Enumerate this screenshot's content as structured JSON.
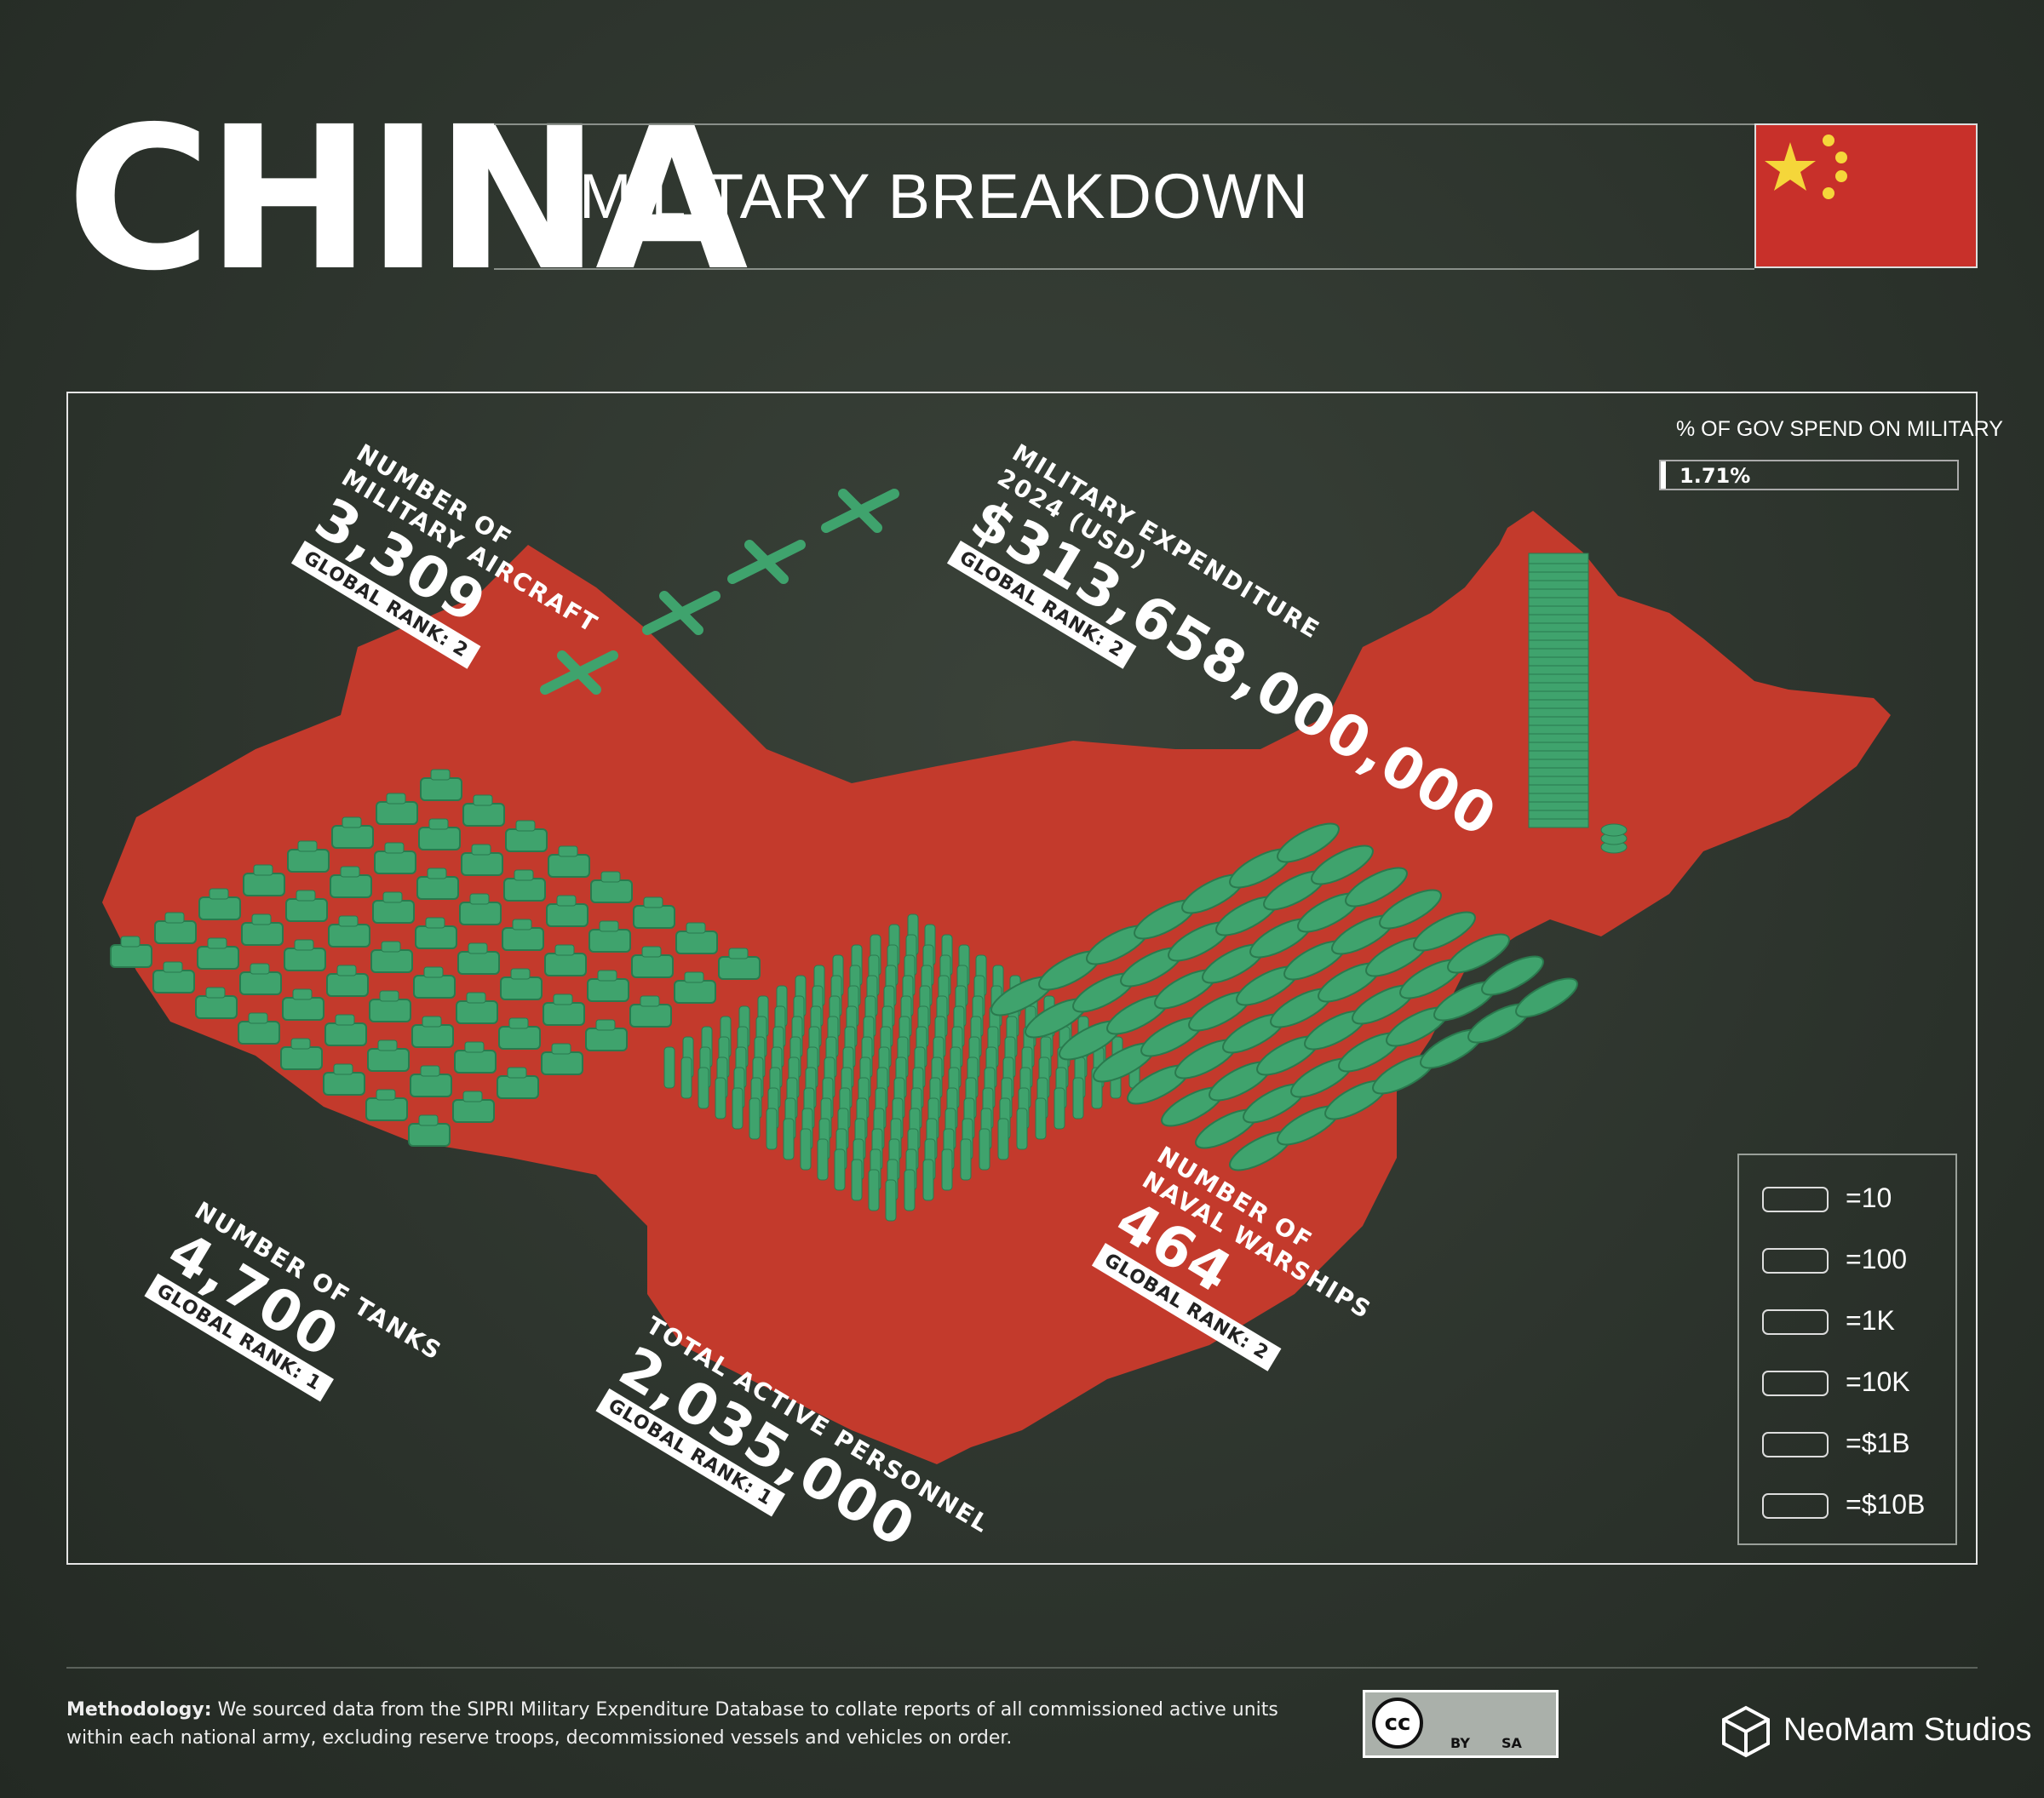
{
  "header": {
    "title": "CHINA",
    "subtitle": "MILITARY BREAKDOWN"
  },
  "gov_spend": {
    "label": "% OF GOV SPEND ON MILITARY",
    "value": "1.71%"
  },
  "stats": [
    {
      "label": [
        "NUMBER OF",
        "MILITARY AIRCRAFT"
      ],
      "value": "3,309",
      "rank": "GLOBAL RANK: 2"
    },
    {
      "label": [
        "MILITARY EXPENDITURE",
        "2024 (USD)"
      ],
      "value": "$313,658,000,000",
      "rank": "GLOBAL RANK: 2"
    },
    {
      "label": [
        "NUMBER OF TANKS"
      ],
      "value": "4,700",
      "rank": "GLOBAL RANK: 1"
    },
    {
      "label": [
        "TOTAL ACTIVE PERSONNEL"
      ],
      "value": "2,035,000",
      "rank": "GLOBAL RANK: 1"
    },
    {
      "label": [
        "NUMBER OF",
        "NAVAL WARSHIPS"
      ],
      "value": "464",
      "rank": "GLOBAL RANK: 2"
    }
  ],
  "legend": [
    "=10",
    "=100",
    "=1K",
    "=10K",
    "=$1B",
    "=$10B"
  ],
  "footer": {
    "methodology_label": "Methodology:",
    "methodology": "We sourced data from the SIPRI Military Expenditure Database to collate reports of all commissioned active units within each national army, excluding reserve troops, decommissioned vessels and vehicles on order.",
    "license": [
      "cc",
      "BY",
      "SA"
    ],
    "brand": "NeoMam Studios"
  }
}
